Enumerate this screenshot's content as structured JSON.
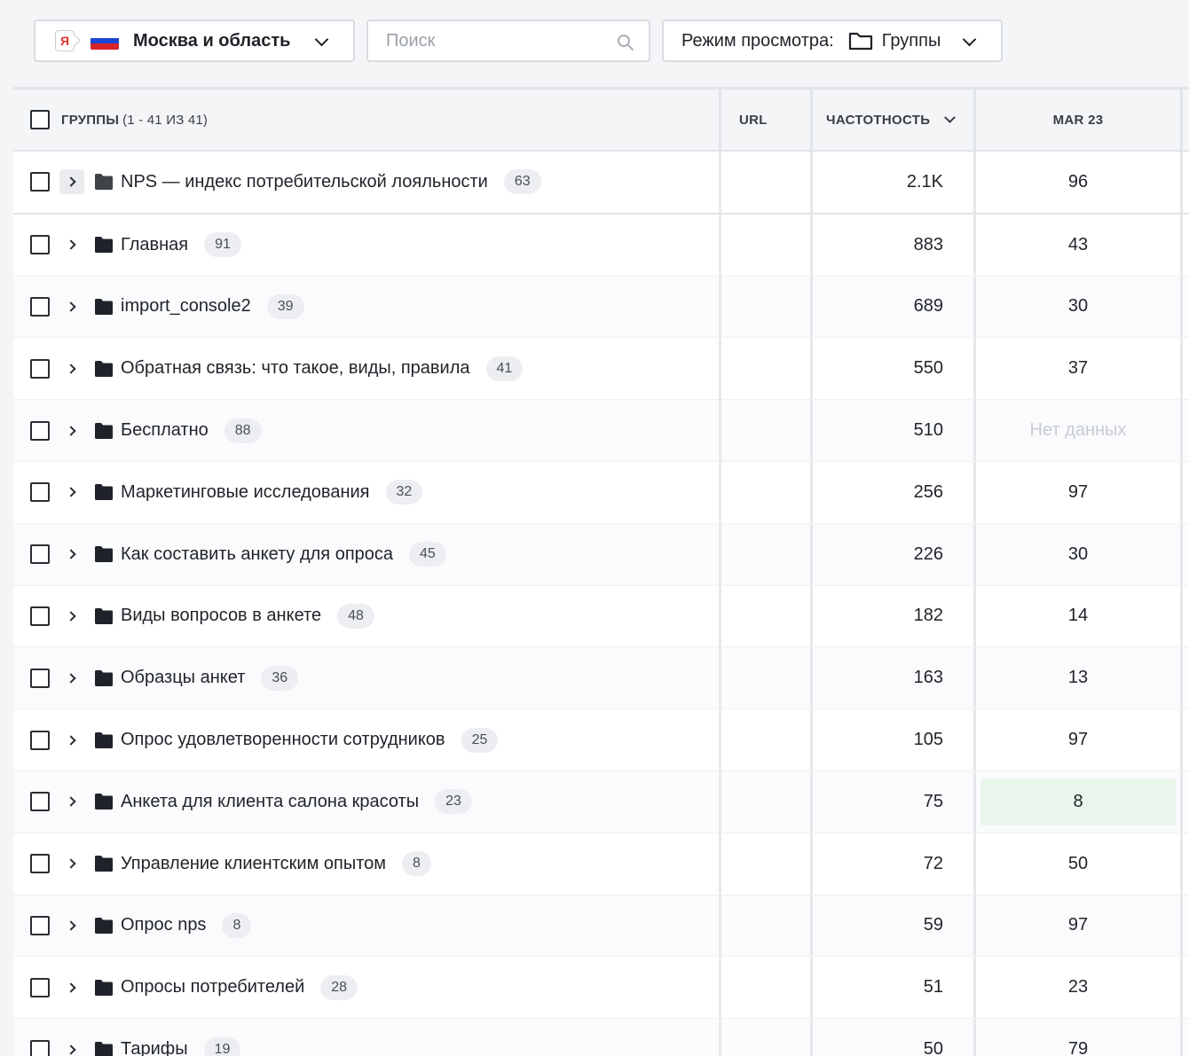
{
  "toolbar": {
    "region": "Москва и область",
    "search_placeholder": "Поиск",
    "view_mode_label": "Режим просмотра:",
    "view_mode_value": "Группы"
  },
  "colors": {
    "flag_white": "#ffffff",
    "flag_blue": "#1c46d6",
    "flag_red": "#d8232a",
    "highlight_green": "#eaf6ec"
  },
  "table": {
    "header": {
      "groups_label": "ГРУППЫ",
      "groups_count": "(1 - 41 ИЗ 41)",
      "url": "URL",
      "frequency": "ЧАСТОТНОСТЬ",
      "month": "MAR 23"
    },
    "rows": [
      {
        "name": "NPS — индекс потребительской лояльности",
        "count": "63",
        "freq": "2.1K",
        "mar": "96"
      },
      {
        "name": "Главная",
        "count": "91",
        "freq": "883",
        "mar": "43"
      },
      {
        "name": "import_console2",
        "count": "39",
        "freq": "689",
        "mar": "30"
      },
      {
        "name": "Обратная связь: что такое, виды, правила",
        "count": "41",
        "freq": "550",
        "mar": "37"
      },
      {
        "name": "Бесплатно",
        "count": "88",
        "freq": "510",
        "mar": "Нет данных"
      },
      {
        "name": "Маркетинговые исследования",
        "count": "32",
        "freq": "256",
        "mar": "97"
      },
      {
        "name": "Как составить анкету для опроса",
        "count": "45",
        "freq": "226",
        "mar": "30"
      },
      {
        "name": "Виды вопросов в анкете",
        "count": "48",
        "freq": "182",
        "mar": "14"
      },
      {
        "name": "Образцы анкет",
        "count": "36",
        "freq": "163",
        "mar": "13"
      },
      {
        "name": "Опрос удовлетворенности сотрудников",
        "count": "25",
        "freq": "105",
        "mar": "97"
      },
      {
        "name": "Анкета для клиента салона красоты",
        "count": "23",
        "freq": "75",
        "mar": "8"
      },
      {
        "name": "Управление клиентским опытом",
        "count": "8",
        "freq": "72",
        "mar": "50"
      },
      {
        "name": "Опрос nps",
        "count": "8",
        "freq": "59",
        "mar": "97"
      },
      {
        "name": "Опросы потребителей",
        "count": "28",
        "freq": "51",
        "mar": "23"
      },
      {
        "name": "Тарифы",
        "count": "19",
        "freq": "50",
        "mar": "79"
      }
    ]
  }
}
